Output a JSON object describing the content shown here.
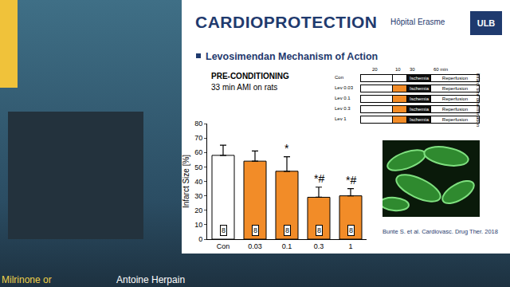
{
  "chart_data": {
    "type": "bar",
    "title": "PRE-CONDITIONING",
    "subtitle": "33 min AMI on rats",
    "y_label": "Infarct Size [%]",
    "categories": [
      "Con",
      "0.03",
      "0.1",
      "0.3",
      "1"
    ],
    "values": [
      58,
      54,
      47,
      29,
      30
    ],
    "errors": [
      7,
      7,
      10,
      7,
      5
    ],
    "n": [
      8,
      8,
      8,
      8,
      8
    ],
    "colors": [
      "#ffffff",
      "#f28c28",
      "#f28c28",
      "#f28c28",
      "#f28c28"
    ],
    "annotations": [
      {
        "category": "0.1",
        "text": "*"
      },
      {
        "category": "0.3",
        "text": "*#"
      },
      {
        "category": "1",
        "text": "*#"
      }
    ],
    "ylim": [
      0,
      80
    ],
    "yticks": [
      0,
      10,
      20,
      30,
      40,
      50,
      60,
      70,
      80
    ],
    "grid": false
  },
  "slide": {
    "heading": "CARDIOPROTECTION",
    "bullet": "Levosimendan Mechanism of Action",
    "logos": [
      "Hôpital Erasme",
      "ULB"
    ],
    "citation": "Bunte S. et al. Cardiovasc. Drug Ther. 2018",
    "protocol": {
      "times": [
        "20",
        "10",
        "30",
        "60 min"
      ],
      "ischemia": "Ischemia",
      "reperfusion": "Reperfusion",
      "endpoint": "Infarct size determination",
      "rows": [
        {
          "label": "Con",
          "drug": false
        },
        {
          "label": "Lev 0.03",
          "drug": true
        },
        {
          "label": "Lev 0.1",
          "drug": true
        },
        {
          "label": "Lev 0.3",
          "drug": true
        },
        {
          "label": "Lev 1",
          "drug": true
        }
      ]
    },
    "speaker": "Antoine Herpain",
    "talk": "Milrinone or"
  }
}
